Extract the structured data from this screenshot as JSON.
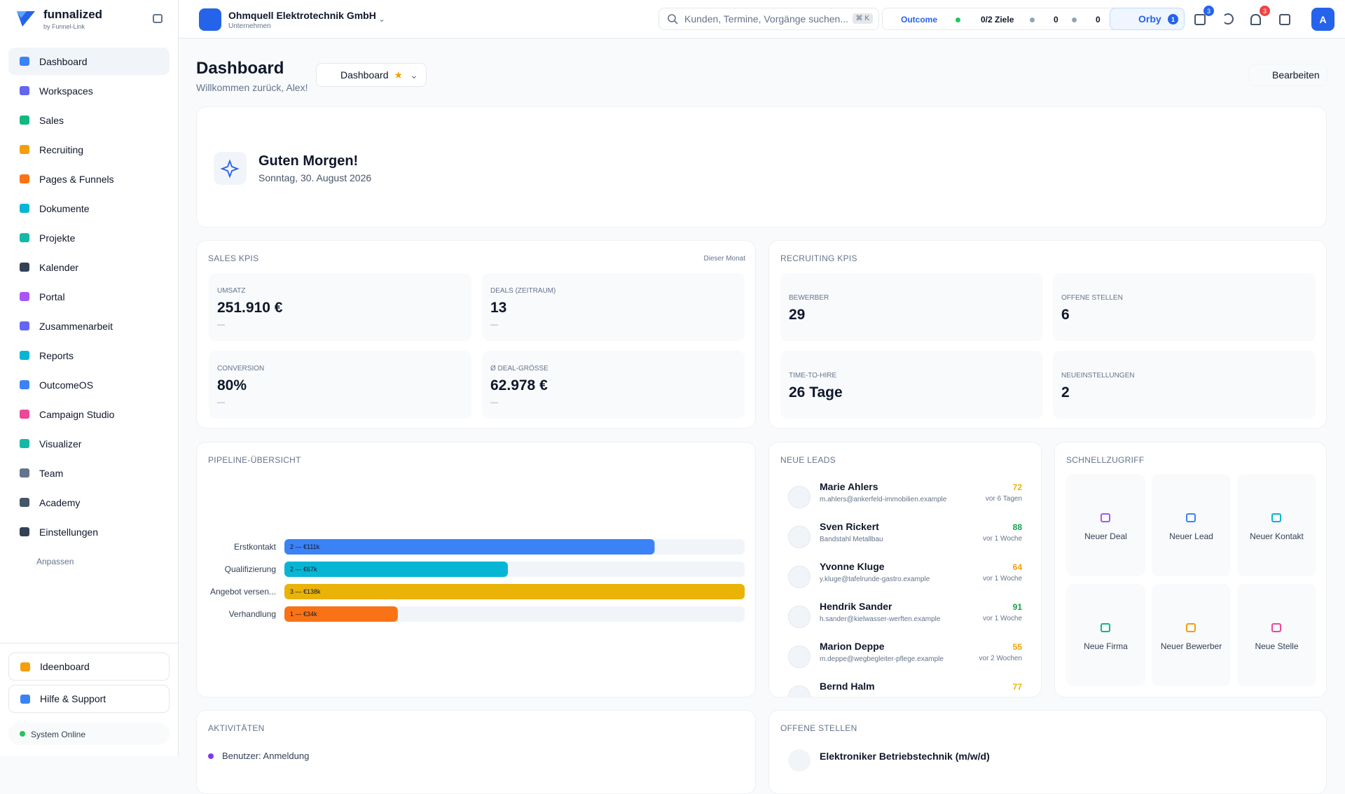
{
  "sidebar": {
    "brand": "funnalized",
    "brand_sub": "by Funnel-Link",
    "nav": [
      "Dashboard",
      "Workspaces",
      "Sales",
      "Recruiting",
      "Pages & Funnels",
      "Dokumente",
      "Projekte",
      "Kalender",
      "Portal",
      "Zusammenarbeit",
      "Reports",
      "OutcomeOS",
      "Campaign Studio",
      "Visualizer",
      "Team",
      "Academy",
      "Einstellungen"
    ],
    "customize": "Anpassen",
    "footer": [
      "Ideenboard",
      "Hilfe & Support"
    ],
    "status": "System Online"
  },
  "topbar": {
    "company": "Ohmquell Elektrotechnik GmbH",
    "company_type": "Unternehmen",
    "search": "Kunden, Termine, Vorgänge suchen...",
    "shortcut": "⌘ K",
    "outcome": "Outcome",
    "goals": "0/2 Ziele",
    "alerts": "0",
    "mails": "0",
    "orby": "Orby",
    "orby_badge": "1",
    "calendar_badge": "3",
    "bell_badge": "3",
    "avatar": "A"
  },
  "header": {
    "title": "Dashboard",
    "subtitle": "Willkommen zurück, Alex!",
    "view": "Dashboard",
    "edit": "Bearbeiten"
  },
  "greeting": {
    "title": "Guten Morgen!",
    "date": "Sonntag, 30. August 2026"
  },
  "sales_kpis": {
    "title": "SALES KPIS",
    "period": "Dieser Monat",
    "items": [
      {
        "label": "UMSATZ",
        "value": "251.910 €",
        "delta": "—"
      },
      {
        "label": "DEALS (ZEITRAUM)",
        "value": "13",
        "delta": "—"
      },
      {
        "label": "CONVERSION",
        "value": "80%",
        "delta": "—"
      },
      {
        "label": "Ø DEAL-GRÖSSE",
        "value": "62.978 €",
        "delta": "—"
      }
    ]
  },
  "recruiting_kpis": {
    "title": "RECRUITING KPIS",
    "items": [
      {
        "label": "BEWERBER",
        "value": "29"
      },
      {
        "label": "OFFENE STELLEN",
        "value": "6"
      },
      {
        "label": "TIME-TO-HIRE",
        "value": "26 Tage"
      },
      {
        "label": "NEUEINSTELLUNGEN",
        "value": "2"
      }
    ]
  },
  "pipeline": {
    "type": "bar",
    "title": "PIPELINE-ÜBERSICHT",
    "categories": [
      "Erstkontakt",
      "Qualifizierung",
      "Angebot versen...",
      "Verhandlung"
    ],
    "values": [
      111,
      67,
      138,
      34
    ],
    "value_labels": [
      "2 — €111k",
      "2 — €67k",
      "3 — €138k",
      "1 — €34k"
    ],
    "colors": [
      "#3b82f6",
      "#06b6d4",
      "#eab308",
      "#f97316"
    ],
    "xlim": [
      0,
      138
    ]
  },
  "leads": {
    "title": "NEUE LEADS",
    "items": [
      {
        "name": "Marie Ahlers",
        "detail": "m.ahlers@ankerfeld-immobilien.example",
        "score": "72",
        "time": "vor 6 Tagen"
      },
      {
        "name": "Sven Rickert",
        "detail": "Bandstahl Metallbau",
        "score": "88",
        "time": "vor 1 Woche"
      },
      {
        "name": "Yvonne Kluge",
        "detail": "y.kluge@tafelrunde-gastro.example",
        "score": "64",
        "time": "vor 1 Woche"
      },
      {
        "name": "Hendrik Sander",
        "detail": "h.sander@kielwasser-werften.example",
        "score": "91",
        "time": "vor 1 Woche"
      },
      {
        "name": "Marion Deppe",
        "detail": "m.deppe@wegbegleiter-pflege.example",
        "score": "55",
        "time": "vor 2 Wochen"
      },
      {
        "name": "Bernd Halm",
        "detail": "",
        "score": "77",
        "time": ""
      }
    ]
  },
  "quick": {
    "title": "SCHNELLZUGRIFF",
    "items": [
      "Neuer Deal",
      "Neuer Lead",
      "Neuer Kontakt",
      "Neue Firma",
      "Neuer Bewerber",
      "Neue Stelle"
    ]
  },
  "activities": {
    "title": "AKTIVITÄTEN",
    "items": [
      "Benutzer: Anmeldung"
    ]
  },
  "jobs": {
    "title": "OFFENE STELLEN",
    "items": [
      "Elektroniker Betriebstechnik (m/w/d)"
    ]
  }
}
